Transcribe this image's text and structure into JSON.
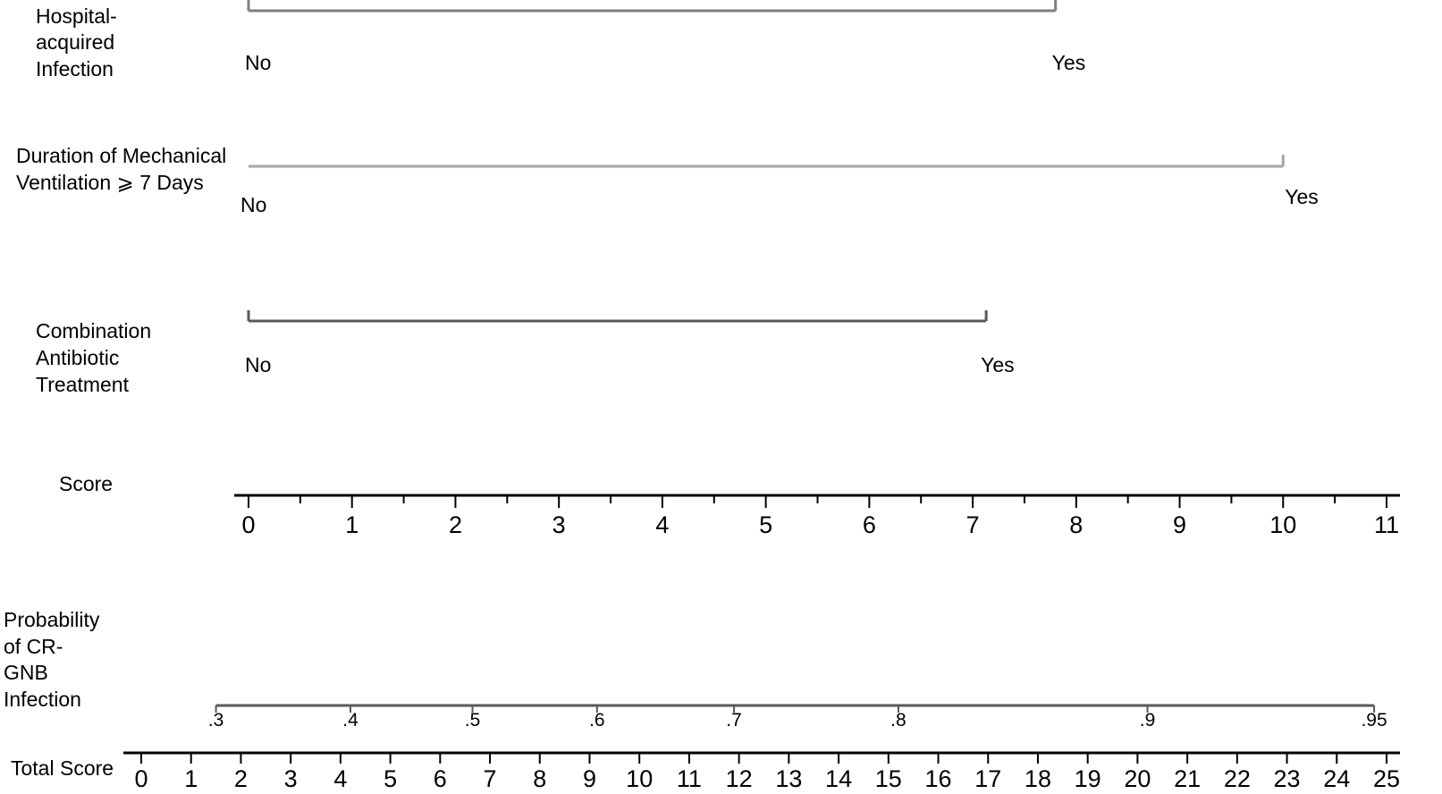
{
  "chart_data": {
    "type": "nomogram",
    "variables": [
      {
        "label_lines": [
          "Hospital-",
          "acquired",
          "Infection"
        ],
        "levels": [
          {
            "label": "No",
            "points": 0
          },
          {
            "label": "Yes",
            "points": 7.8
          }
        ]
      },
      {
        "label_lines": [
          "Duration of Mechanical",
          "Ventilation ⩾ 7 Days"
        ],
        "levels": [
          {
            "label": "No",
            "points": 0
          },
          {
            "label": "Yes",
            "points": 10
          }
        ]
      },
      {
        "label_lines": [
          "Combination",
          "Antibiotic",
          "Treatment"
        ],
        "levels": [
          {
            "label": "No",
            "points": 0
          },
          {
            "label": "Yes",
            "points": 7.13
          }
        ]
      }
    ],
    "score_axis": {
      "label": "Score",
      "range": [
        0,
        11
      ],
      "major_ticks": [
        "0",
        "1",
        "2",
        "3",
        "4",
        "5",
        "6",
        "7",
        "8",
        "9",
        "10",
        "11"
      ]
    },
    "probability_axis": {
      "label_lines": [
        "Probability",
        "of CR-",
        "GNB",
        "Infection"
      ],
      "ticks": [
        {
          "label": ".3",
          "total": 1.5
        },
        {
          "label": ".4",
          "total": 4.2
        },
        {
          "label": ".5",
          "total": 6.65
        },
        {
          "label": ".6",
          "total": 9.15
        },
        {
          "label": ".7",
          "total": 11.9
        },
        {
          "label": ".8",
          "total": 15.2
        },
        {
          "label": ".9",
          "total": 20.2
        },
        {
          "label": ".95",
          "total": 24.75
        }
      ]
    },
    "total_axis": {
      "label": "Total Score",
      "range": [
        0,
        25
      ],
      "ticks": [
        "0",
        "1",
        "2",
        "3",
        "4",
        "5",
        "6",
        "7",
        "8",
        "9",
        "10",
        "11",
        "12",
        "13",
        "14",
        "15",
        "16",
        "17",
        "18",
        "19",
        "20",
        "21",
        "22",
        "23",
        "24",
        "25"
      ]
    }
  }
}
